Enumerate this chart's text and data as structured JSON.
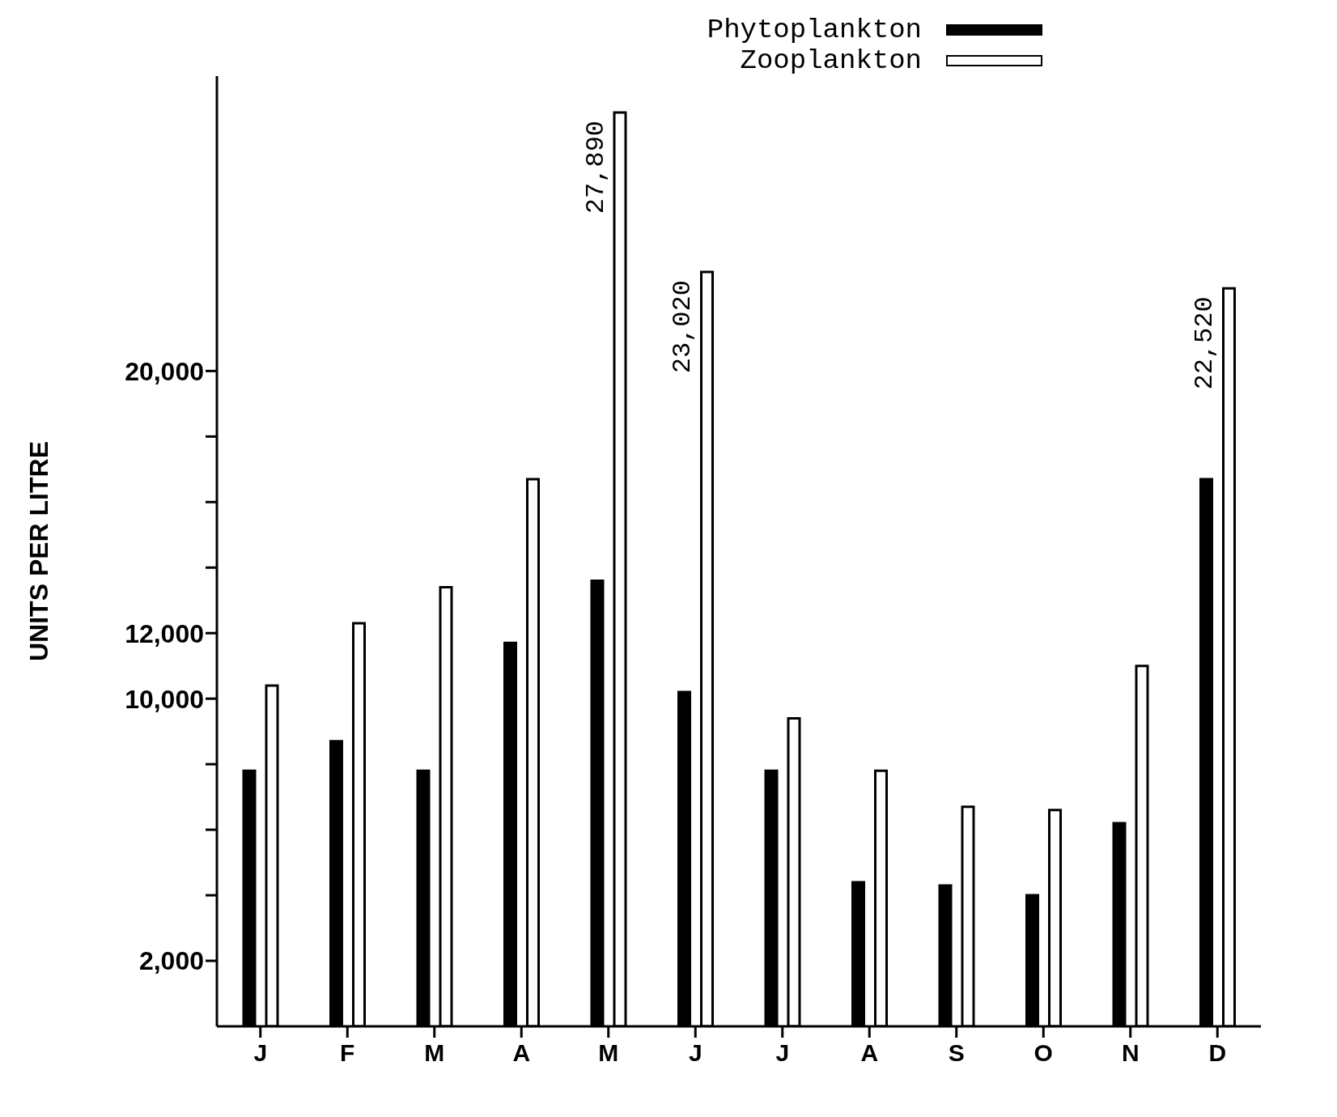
{
  "chart_data": {
    "type": "bar",
    "ylabel": "UNITS PER LITRE",
    "categories": [
      "J",
      "F",
      "M",
      "A",
      "M",
      "J",
      "J",
      "A",
      "S",
      "O",
      "N",
      "D"
    ],
    "series": [
      {
        "name": "Phytoplankton",
        "color": "#000000",
        "values": [
          7800,
          8700,
          7800,
          11700,
          13600,
          10200,
          7800,
          4400,
          4300,
          4000,
          6200,
          16700
        ]
      },
      {
        "name": "Zooplankton",
        "color": "#ffffff",
        "values": [
          10400,
          12300,
          13400,
          16700,
          27890,
          23020,
          9400,
          7800,
          6700,
          6600,
          11000,
          22520
        ],
        "value_labels": [
          null,
          null,
          null,
          null,
          "27,890",
          "23,020",
          null,
          null,
          null,
          null,
          null,
          "22,520"
        ]
      }
    ],
    "ylim": [
      0,
      29000
    ],
    "yticks": [
      {
        "value": 2000,
        "label": "2,000"
      },
      {
        "value": 4000,
        "label": null
      },
      {
        "value": 6000,
        "label": null
      },
      {
        "value": 8000,
        "label": null
      },
      {
        "value": 10000,
        "label": "10,000"
      },
      {
        "value": 12000,
        "label": "12,000"
      },
      {
        "value": 14000,
        "label": null
      },
      {
        "value": 16000,
        "label": null
      },
      {
        "value": 18000,
        "label": null
      },
      {
        "value": 20000,
        "label": "20,000"
      }
    ],
    "grid": false,
    "legend": "top right"
  }
}
